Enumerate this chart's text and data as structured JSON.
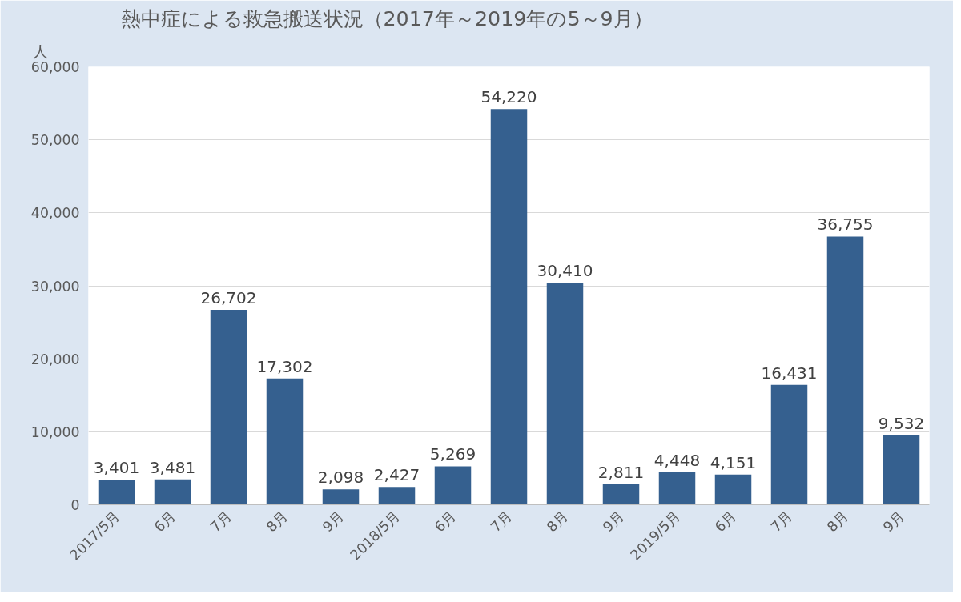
{
  "chart_data": {
    "type": "bar",
    "title": "熱中症による救急搬送状況（2017年～2019年の5～9月）",
    "ylabel": "人",
    "categories": [
      "2017/5月",
      "6月",
      "7月",
      "8月",
      "9月",
      "2018/5月",
      "6月",
      "7月",
      "8月",
      "9月",
      "2019/5月",
      "6月",
      "7月",
      "8月",
      "9月"
    ],
    "values": [
      3401,
      3481,
      26702,
      17302,
      2098,
      2427,
      5269,
      54220,
      30410,
      2811,
      4448,
      4151,
      16431,
      36755,
      9532
    ],
    "value_labels": [
      "3,401",
      "3,481",
      "26,702",
      "17,302",
      "2,098",
      "2,427",
      "5,269",
      "54,220",
      "30,410",
      "2,811",
      "4,448",
      "4,151",
      "16,431",
      "36,755",
      "9,532"
    ],
    "color": "#35608f",
    "ylim": [
      0,
      60000
    ],
    "yticks": [
      0,
      {
        "value": 10000,
        "label": "10,000"
      },
      {
        "value": 20000,
        "label": "20,000"
      },
      {
        "value": 30000,
        "label": "30,000"
      },
      {
        "value": 40000,
        "label": "40,000"
      },
      {
        "value": 50000,
        "label": "50,000"
      },
      {
        "value": 60000,
        "label": "60,000"
      }
    ],
    "grid": "y"
  }
}
